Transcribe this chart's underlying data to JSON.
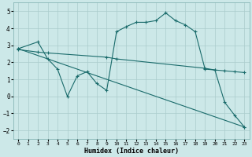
{
  "xlabel": "Humidex (Indice chaleur)",
  "bg_color": "#cce8e8",
  "grid_color": "#aacccc",
  "line_color": "#1a6b6b",
  "xlim": [
    -0.5,
    23.5
  ],
  "ylim": [
    -2.5,
    5.5
  ],
  "xticks": [
    0,
    1,
    2,
    3,
    4,
    5,
    6,
    7,
    8,
    9,
    10,
    11,
    12,
    13,
    14,
    15,
    16,
    17,
    18,
    19,
    20,
    21,
    22,
    23
  ],
  "yticks": [
    -2,
    -1,
    0,
    1,
    2,
    3,
    4,
    5
  ],
  "line1_x": [
    0,
    2,
    3,
    4,
    5,
    6,
    7,
    8,
    9,
    10,
    11,
    12,
    13,
    14,
    15,
    16,
    17,
    18,
    19,
    20,
    21,
    22,
    23
  ],
  "line1_y": [
    2.8,
    3.2,
    2.2,
    1.6,
    0.0,
    1.2,
    1.45,
    0.75,
    0.35,
    3.8,
    4.1,
    4.35,
    4.35,
    4.45,
    4.9,
    4.45,
    4.2,
    3.8,
    1.6,
    1.55,
    -0.35,
    -1.1,
    -1.8
  ],
  "line2_x": [
    0,
    23
  ],
  "line2_y": [
    2.8,
    -1.8
  ],
  "line3_x": [
    0,
    2,
    3,
    9,
    10,
    19,
    20,
    21,
    22,
    23
  ],
  "line3_y": [
    2.75,
    2.6,
    2.55,
    2.3,
    2.2,
    1.65,
    1.55,
    1.5,
    1.45,
    1.4
  ]
}
